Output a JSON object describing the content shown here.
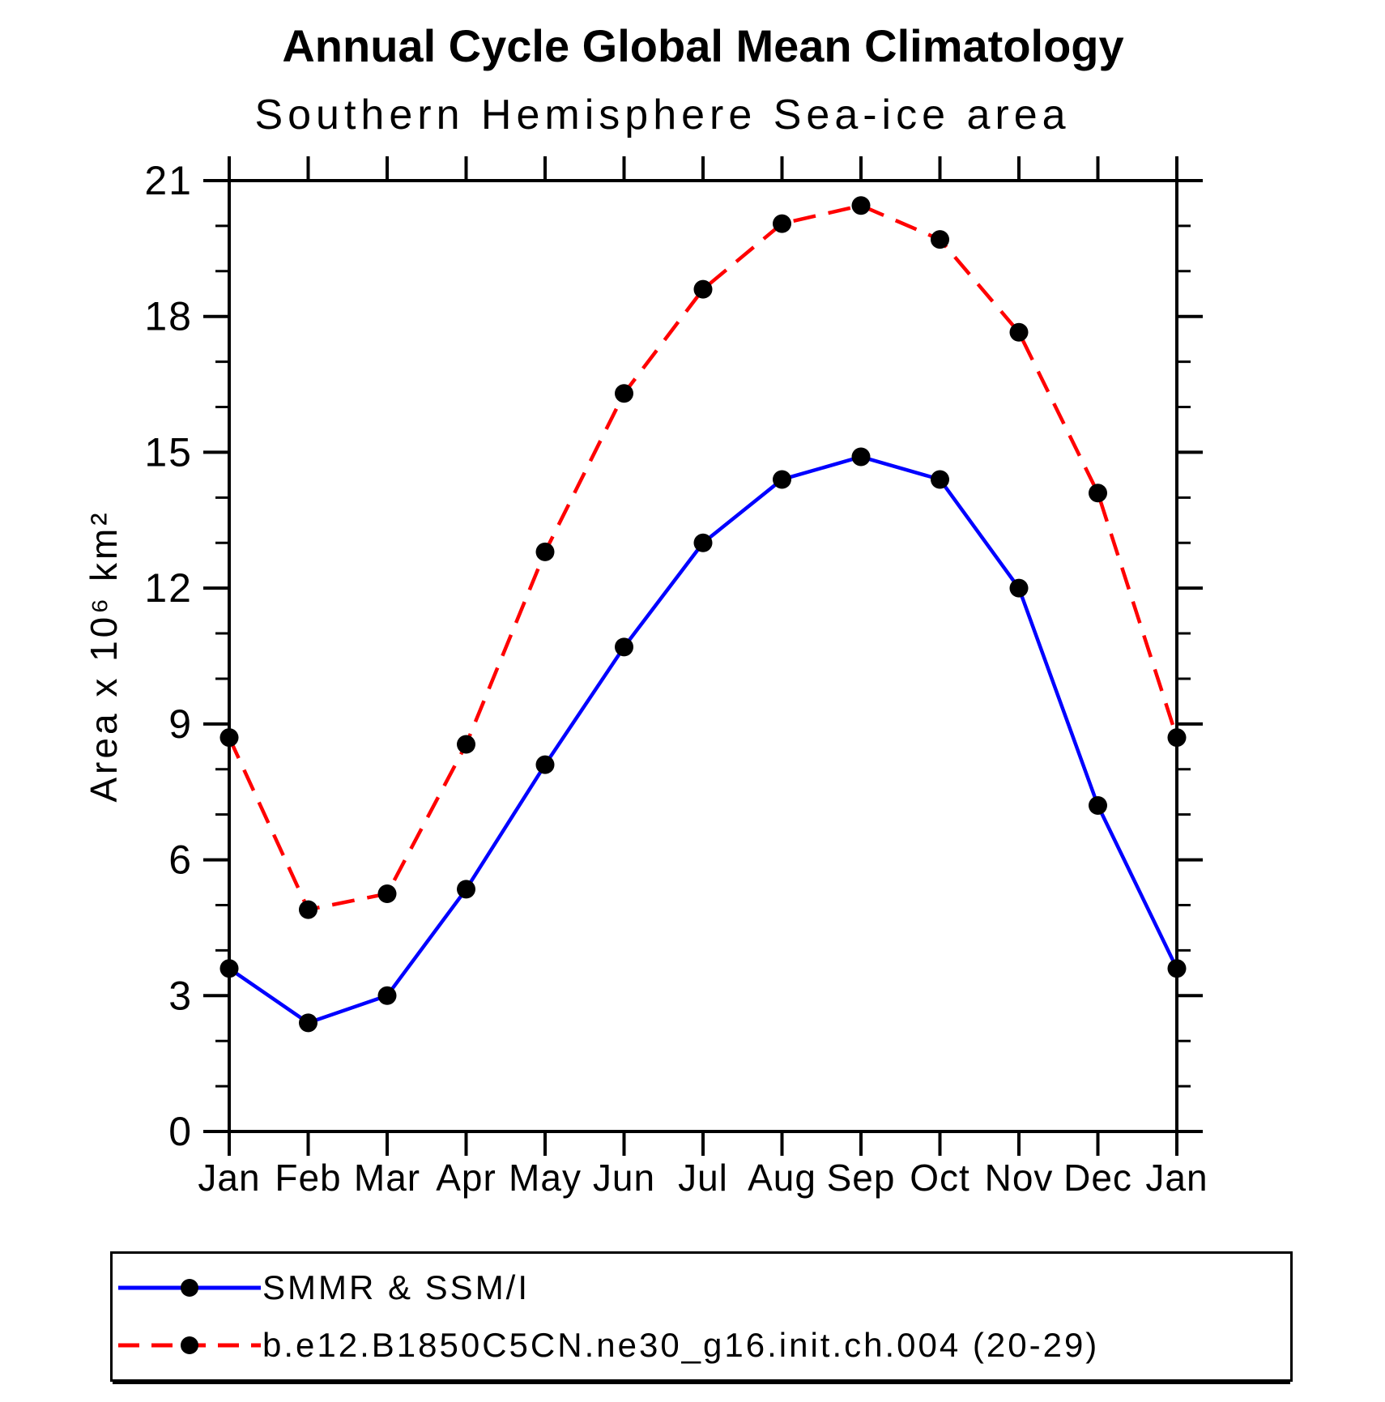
{
  "title": "Annual Cycle Global Mean Climatology",
  "subtitle": "Southern Hemisphere Sea-ice area",
  "chart_data": {
    "type": "line",
    "categories": [
      "Jan",
      "Feb",
      "Mar",
      "Apr",
      "May",
      "Jun",
      "Jul",
      "Aug",
      "Sep",
      "Oct",
      "Nov",
      "Dec",
      "Jan"
    ],
    "series": [
      {
        "name": "SMMR & SSM/I",
        "color": "#0000ff",
        "line_style": "solid",
        "marker": "black-filled-circle",
        "values": [
          3.6,
          2.4,
          3.0,
          5.35,
          8.1,
          10.7,
          13.0,
          14.4,
          14.9,
          14.4,
          12.0,
          7.2,
          3.6
        ]
      },
      {
        "name": "b.e12.B1850C5CN.ne30_g16.init.ch.004 (20-29)",
        "color": "#ff0000",
        "line_style": "dashed",
        "marker": "black-filled-circle",
        "values": [
          8.7,
          4.9,
          5.25,
          8.55,
          12.8,
          16.3,
          18.6,
          20.05,
          20.45,
          19.7,
          17.65,
          14.1,
          8.7
        ]
      }
    ],
    "xlabel": "",
    "ylabel": "Area x 10⁶ km²",
    "ylim": [
      0,
      21
    ],
    "yticks": [
      0,
      3,
      6,
      9,
      12,
      15,
      18,
      21
    ],
    "y_minor_step": 1,
    "grid": false,
    "legend_position": "bottom",
    "axis_color": "#000000",
    "marker_color": "#000000"
  }
}
